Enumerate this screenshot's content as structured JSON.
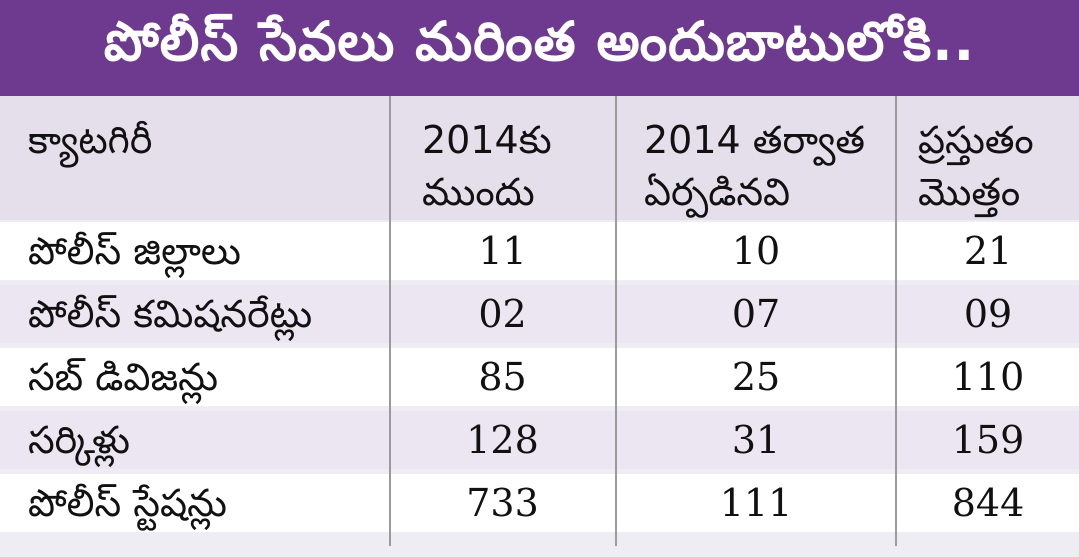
{
  "title": "పోలీస్ సేవలు మరింత అందుబాటులోకి..",
  "chart_data": {
    "type": "table",
    "columns": [
      "క్యాటగిరీ",
      "2014కు\nముందు",
      "2014 తర్వాత\nఏర్పడినవి",
      "ప్రస్తుతం\nమొత్తం"
    ],
    "rows": [
      {
        "category": "పోలీస్ జిల్లాలు",
        "before_2014": "11",
        "after_2014": "10",
        "total": "21"
      },
      {
        "category": "పోలీస్ కమిషనరేట్లు",
        "before_2014": "02",
        "after_2014": "07",
        "total": "09"
      },
      {
        "category": "సబ్ డివిజన్లు",
        "before_2014": "85",
        "after_2014": "25",
        "total": "110"
      },
      {
        "category": "సర్కిళ్లు",
        "before_2014": "128",
        "after_2014": "31",
        "total": "159"
      },
      {
        "category": "పోలీస్ స్టేషన్లు",
        "before_2014": "733",
        "after_2014": "111",
        "total": "844"
      }
    ]
  },
  "colors": {
    "title_bg": "#6e3a8f",
    "header_bg": "#e5dfec",
    "row_alt_bg": "#ebe6f1",
    "row_bg": "#ffffff"
  }
}
